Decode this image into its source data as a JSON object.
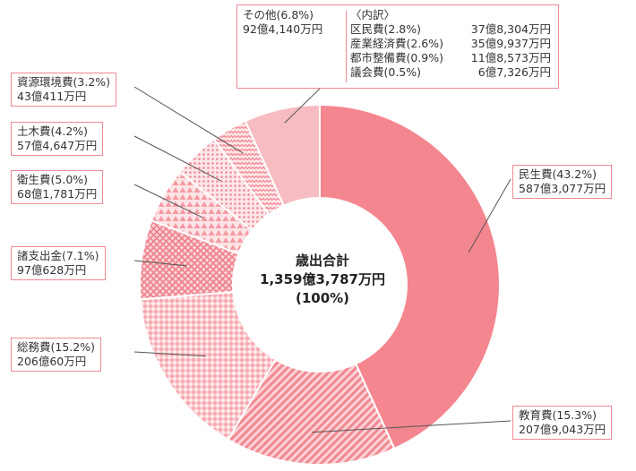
{
  "chart_data": {
    "type": "pie",
    "center_text": {
      "line1": "歳出合計",
      "line2": "1,359億3,787万円",
      "line3": "(100%)"
    },
    "categories": [
      "民生費",
      "教育費",
      "総務費",
      "諸支出金",
      "衛生費",
      "土木費",
      "資源環境費",
      "その他"
    ],
    "values": [
      43.2,
      15.3,
      15.2,
      7.1,
      5.0,
      4.2,
      3.2,
      6.8
    ],
    "slices": [
      {
        "name": "民生費",
        "percent_label": "(43.2%)",
        "amount": "587億3,077万円",
        "color": "#f4868f",
        "pattern": "solid"
      },
      {
        "name": "教育費",
        "percent_label": "(15.3%)",
        "amount": "207億9,043万円",
        "color": "#f4868f",
        "pattern": "diagonal"
      },
      {
        "name": "総務費",
        "percent_label": "(15.2%)",
        "amount": "206億60万円",
        "color": "#f4868f",
        "pattern": "diamond"
      },
      {
        "name": "諸支出金",
        "percent_label": "(7.1%)",
        "amount": "97億628万円",
        "color": "#f4868f",
        "pattern": "crosshatch"
      },
      {
        "name": "衛生費",
        "percent_label": "(5.0%)",
        "amount": "68億1,781万円",
        "color": "#f4868f",
        "pattern": "triangle"
      },
      {
        "name": "土木費",
        "percent_label": "(4.2%)",
        "amount": "57億4,647万円",
        "color": "#f4868f",
        "pattern": "dots"
      },
      {
        "name": "資源環境費",
        "percent_label": "(3.2%)",
        "amount": "43億411万円",
        "color": "#f4868f",
        "pattern": "zigzag"
      },
      {
        "name": "その他",
        "percent_label": "(6.8%)",
        "amount": "92億4,140万円",
        "color": "#f7bcc1",
        "pattern": "solid"
      }
    ],
    "breakdown": {
      "title": "〈内訳〉",
      "items": [
        {
          "label": "区民費(2.8%)",
          "amount": "37億8,304万円"
        },
        {
          "label": "産業経済費(2.6%)",
          "amount": "35億9,937万円"
        },
        {
          "label": "都市整備費(0.9%)",
          "amount": "11億8,573万円"
        },
        {
          "label": "議会費(0.5%)",
          "amount": "6億7,326万円"
        }
      ]
    },
    "legend": "none"
  }
}
